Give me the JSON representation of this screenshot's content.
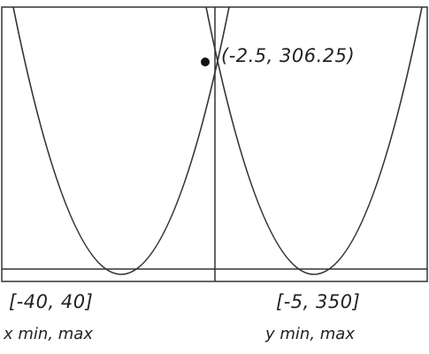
{
  "graph": {
    "point_label": "(-2.5, 306.25)"
  },
  "x_window": {
    "range": "[-40, 40]",
    "caption": "x min, max"
  },
  "y_window": {
    "range": "[-5, 350]",
    "caption": "y min, max"
  }
}
